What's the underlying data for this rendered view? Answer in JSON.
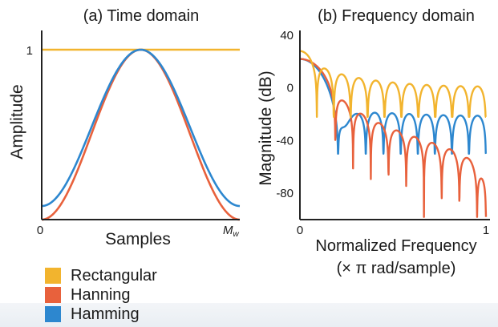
{
  "colors": {
    "rectangular": "#f2b42e",
    "hanning": "#e8613c",
    "hamming": "#2d87cf"
  },
  "legend": [
    {
      "name": "Rectangular",
      "color": "#f2b42e"
    },
    {
      "name": "Hanning",
      "color": "#e8613c"
    },
    {
      "name": "Hamming",
      "color": "#2d87cf"
    }
  ],
  "chart_data": [
    {
      "type": "line",
      "title": "(a) Time domain",
      "xlabel": "Samples",
      "ylabel": "Amplitude",
      "x_ticks": [
        "0",
        "M"
      ],
      "x_tick_subscript": "w",
      "y_ticks": [
        {
          "value": 1,
          "label": "1"
        }
      ],
      "xlim": [
        0,
        1
      ],
      "ylim": [
        0,
        1.1
      ],
      "grid": false,
      "series": [
        {
          "name": "Rectangular",
          "window": "rectangular",
          "values": "constant 1"
        },
        {
          "name": "Hanning",
          "window": "hanning",
          "formula": "0.5 - 0.5 cos(2πn/M)"
        },
        {
          "name": "Hamming",
          "window": "hamming",
          "formula": "0.54 - 0.46 cos(2πn/M)"
        }
      ]
    },
    {
      "type": "line",
      "title": "(b) Frequency domain",
      "xlabel": "Normalized Frequency",
      "xlabel2": "(× π rad/sample)",
      "ylabel": "Magnitude (dB)",
      "x_ticks": [
        0,
        1
      ],
      "y_ticks": [
        40,
        0,
        -40,
        -80
      ],
      "xlim": [
        0,
        1
      ],
      "ylim": [
        -100,
        40
      ],
      "grid": false,
      "series": [
        {
          "name": "Rectangular",
          "window": "rectangular",
          "mainlobe_peak_db": 28,
          "first_null": 0.09,
          "sidelobe_level_db": 0,
          "null_depth_db": -22
        },
        {
          "name": "Hanning",
          "window": "hanning",
          "mainlobe_peak_db": 22,
          "first_null": 0.18,
          "sidelobe_level_db": -14,
          "null_depth_db": -98
        },
        {
          "name": "Hamming",
          "window": "hamming",
          "mainlobe_peak_db": 22,
          "first_null": 0.18,
          "sidelobe_level_db": -20,
          "null_depth_db": -50
        }
      ]
    }
  ]
}
